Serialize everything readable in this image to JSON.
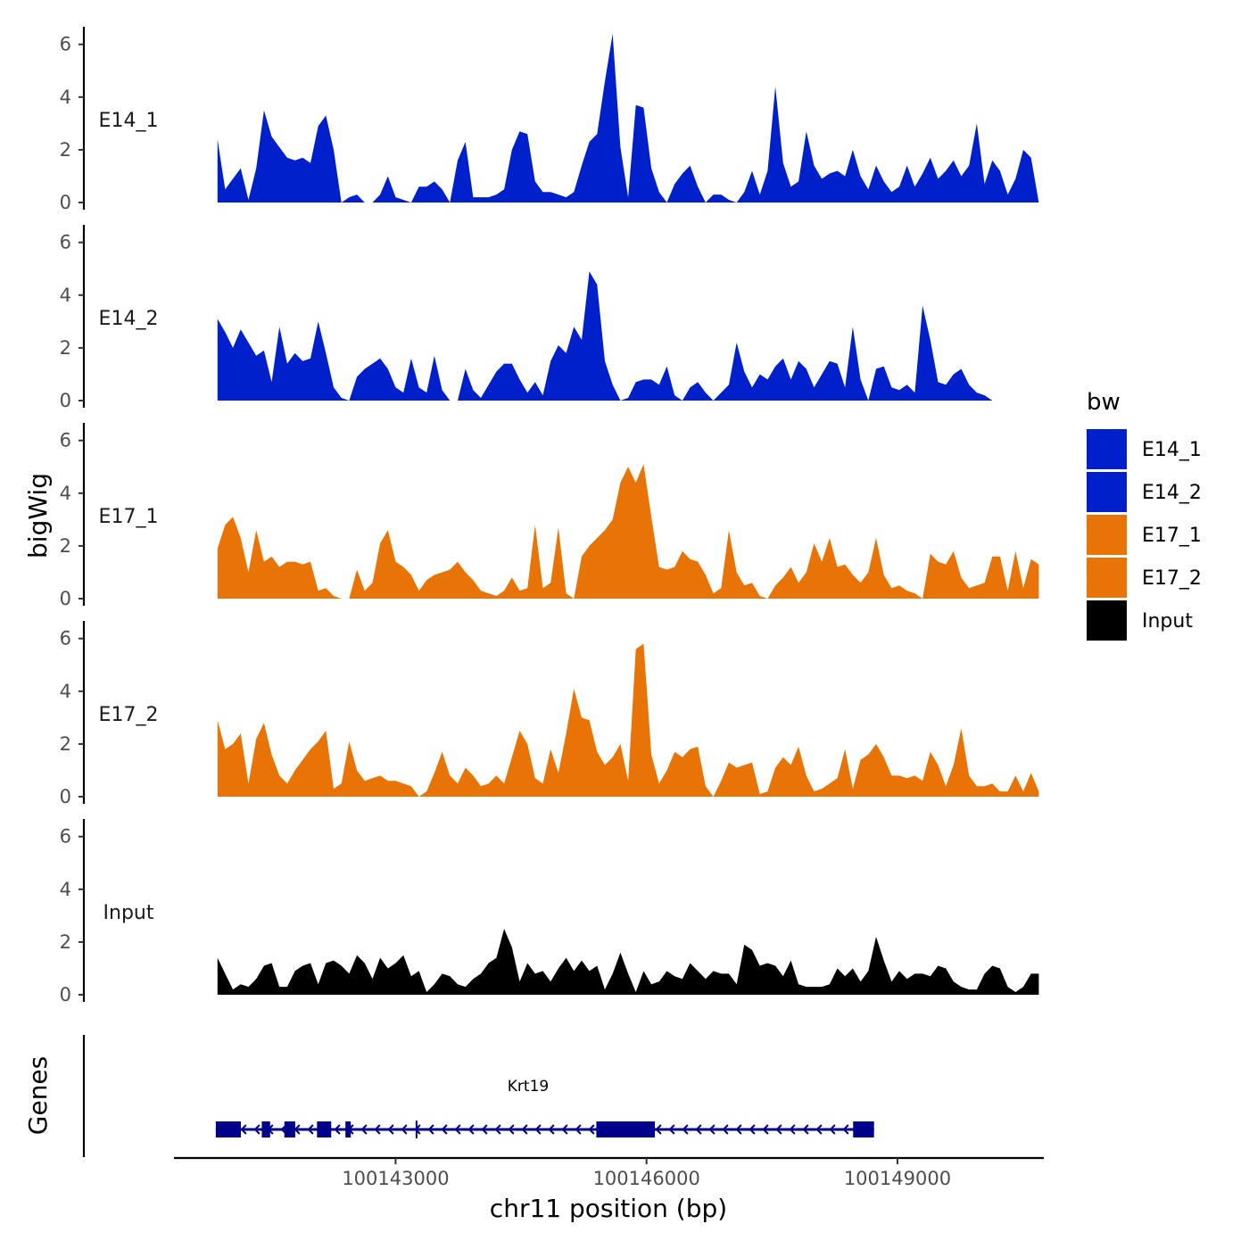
{
  "chart_data": {
    "type": "area",
    "title": "",
    "xlabel": "chr11 position (bp)",
    "ylabel_tracks": "bigWig",
    "ylabel_genes": "Genes",
    "xlim": [
      100140350,
      100150750
    ],
    "ylim": [
      0,
      6.6
    ],
    "yticks": [
      0,
      2,
      4,
      6
    ],
    "ytick_labels": [
      "0",
      "2",
      "4",
      "6"
    ],
    "xticks": [
      100143000,
      100146000,
      100149000
    ],
    "xtick_labels": [
      "100143000",
      "100146000",
      "100149000"
    ],
    "x_start": 100140870,
    "x_end": 100150690,
    "legend": {
      "title": "bw",
      "position": "right",
      "entries": [
        {
          "label": "E14_1",
          "color": "#0020CC"
        },
        {
          "label": "E14_2",
          "color": "#0020CC"
        },
        {
          "label": "E17_1",
          "color": "#E87408"
        },
        {
          "label": "E17_2",
          "color": "#E87408"
        },
        {
          "label": "Input",
          "color": "#000000"
        }
      ]
    },
    "series": [
      {
        "name": "E14_1",
        "color": "#0020CC",
        "values": [
          2.4,
          0.5,
          0.9,
          1.3,
          0.1,
          1.3,
          3.5,
          2.5,
          2.1,
          1.7,
          1.6,
          1.7,
          1.5,
          2.9,
          3.3,
          2.0,
          0.0,
          0.2,
          0.3,
          0.0,
          0.0,
          0.3,
          1.0,
          0.2,
          0.1,
          0.0,
          0.6,
          0.6,
          0.8,
          0.5,
          0.0,
          1.6,
          2.3,
          0.2,
          0.2,
          0.2,
          0.3,
          0.5,
          2.0,
          2.7,
          2.6,
          0.8,
          0.4,
          0.4,
          0.3,
          0.2,
          0.4,
          1.4,
          2.3,
          2.6,
          4.6,
          6.4,
          2.1,
          0.2,
          3.7,
          3.6,
          1.3,
          0.4,
          0.0,
          0.7,
          1.1,
          1.4,
          0.6,
          0.0,
          0.3,
          0.3,
          0.1,
          0.0,
          0.4,
          1.2,
          0.3,
          1.2,
          4.4,
          1.5,
          0.6,
          0.8,
          2.7,
          1.4,
          0.9,
          1.1,
          1.2,
          1.0,
          2.0,
          1.0,
          0.5,
          1.4,
          0.8,
          0.4,
          0.6,
          1.4,
          0.6,
          1.1,
          1.7,
          0.9,
          1.2,
          1.6,
          1.0,
          1.4,
          3.0,
          0.7,
          1.6,
          1.2,
          0.3,
          0.9,
          2.0,
          1.7,
          0.0
        ]
      },
      {
        "name": "E14_2",
        "color": "#0020CC",
        "values": [
          3.1,
          2.6,
          2.0,
          2.7,
          2.2,
          1.7,
          1.9,
          0.7,
          2.8,
          1.4,
          1.8,
          1.5,
          1.6,
          3.0,
          1.8,
          0.5,
          0.1,
          0.0,
          0.9,
          1.2,
          1.4,
          1.6,
          1.2,
          0.5,
          0.3,
          1.6,
          0.5,
          0.3,
          1.7,
          0.4,
          0.0,
          0.0,
          1.2,
          0.4,
          0.1,
          0.6,
          1.1,
          1.4,
          1.4,
          0.8,
          0.3,
          0.7,
          0.2,
          1.5,
          2.1,
          1.8,
          2.8,
          2.3,
          4.9,
          4.4,
          1.5,
          0.6,
          0.0,
          0.1,
          0.7,
          0.8,
          0.8,
          0.6,
          1.3,
          0.2,
          0.0,
          0.5,
          0.7,
          0.3,
          0.0,
          0.3,
          0.6,
          2.2,
          1.1,
          0.5,
          1.0,
          0.8,
          1.3,
          1.6,
          0.8,
          1.5,
          1.2,
          0.5,
          1.0,
          1.5,
          1.4,
          0.5,
          2.8,
          0.8,
          0.0,
          1.2,
          1.3,
          0.5,
          0.4,
          0.6,
          0.3,
          3.6,
          2.3,
          0.7,
          0.6,
          1.0,
          1.2,
          0.6,
          0.3,
          0.2,
          0.0,
          0.0,
          0.0,
          0.0,
          0.0,
          0.0,
          0.0
        ]
      },
      {
        "name": "E17_1",
        "color": "#E87408",
        "values": [
          1.9,
          2.8,
          3.1,
          2.3,
          1.0,
          2.6,
          1.4,
          1.6,
          1.2,
          1.4,
          1.4,
          1.3,
          1.4,
          0.3,
          0.4,
          0.1,
          0.0,
          0.0,
          1.1,
          0.3,
          0.6,
          2.1,
          2.6,
          1.4,
          1.2,
          0.9,
          0.3,
          0.7,
          0.9,
          1.0,
          1.1,
          1.4,
          1.0,
          0.7,
          0.3,
          0.2,
          0.1,
          0.3,
          0.8,
          0.3,
          0.4,
          2.8,
          0.4,
          0.6,
          2.7,
          0.2,
          0.0,
          1.6,
          2.0,
          2.3,
          2.6,
          3.0,
          4.4,
          5.0,
          4.4,
          5.1,
          3.1,
          1.2,
          1.1,
          1.2,
          1.8,
          1.5,
          1.4,
          0.9,
          0.2,
          0.4,
          2.6,
          1.0,
          0.5,
          0.6,
          0.1,
          0.0,
          0.5,
          0.8,
          1.2,
          0.6,
          1.0,
          2.1,
          1.4,
          2.3,
          1.2,
          1.3,
          0.9,
          0.6,
          1.0,
          2.3,
          0.9,
          0.4,
          0.5,
          0.3,
          0.2,
          0.0,
          1.7,
          1.4,
          1.3,
          1.8,
          0.8,
          0.4,
          0.5,
          0.6,
          1.6,
          1.6,
          0.3,
          1.8,
          0.4,
          1.5,
          1.3
        ]
      },
      {
        "name": "E17_2",
        "color": "#E87408",
        "values": [
          2.9,
          1.8,
          2.0,
          2.4,
          0.5,
          2.2,
          2.8,
          1.6,
          0.8,
          0.5,
          1.0,
          1.4,
          1.8,
          2.1,
          2.5,
          0.3,
          0.5,
          2.1,
          1.0,
          0.6,
          0.7,
          0.8,
          0.6,
          0.6,
          0.5,
          0.4,
          0.0,
          0.2,
          0.9,
          1.7,
          0.8,
          0.5,
          1.1,
          0.8,
          0.4,
          0.5,
          0.8,
          0.5,
          1.5,
          2.5,
          2.0,
          0.7,
          0.5,
          1.8,
          0.9,
          2.4,
          4.1,
          3.0,
          2.9,
          1.7,
          1.2,
          1.5,
          2.0,
          0.6,
          5.6,
          5.8,
          1.6,
          0.5,
          1.0,
          1.7,
          1.5,
          1.8,
          1.9,
          0.4,
          0.0,
          0.6,
          1.3,
          1.1,
          1.2,
          1.3,
          0.1,
          0.2,
          1.1,
          1.5,
          1.2,
          1.9,
          0.8,
          0.2,
          0.3,
          0.5,
          0.7,
          1.8,
          0.3,
          1.4,
          1.6,
          2.0,
          1.5,
          0.8,
          0.8,
          0.7,
          0.8,
          0.6,
          1.7,
          1.2,
          0.4,
          1.2,
          2.6,
          0.8,
          0.4,
          0.4,
          0.5,
          0.2,
          0.2,
          0.8,
          0.2,
          0.9,
          0.2
        ]
      },
      {
        "name": "Input",
        "color": "#000000",
        "values": [
          1.4,
          0.8,
          0.2,
          0.4,
          0.3,
          0.6,
          1.1,
          1.2,
          0.3,
          0.3,
          0.9,
          1.1,
          1.2,
          0.4,
          1.2,
          1.3,
          1.1,
          0.8,
          1.5,
          1.2,
          0.6,
          1.4,
          1.0,
          1.2,
          1.5,
          0.7,
          0.9,
          0.1,
          0.4,
          0.8,
          0.7,
          0.4,
          0.3,
          0.6,
          0.8,
          1.2,
          1.4,
          2.5,
          1.8,
          0.5,
          1.2,
          0.8,
          0.9,
          0.5,
          1.0,
          1.4,
          0.9,
          1.3,
          0.9,
          1.1,
          0.2,
          0.8,
          1.6,
          0.8,
          0.1,
          0.9,
          0.4,
          0.5,
          0.9,
          0.7,
          0.6,
          1.2,
          0.9,
          0.6,
          0.9,
          0.8,
          0.8,
          0.4,
          1.9,
          1.7,
          1.1,
          1.2,
          1.1,
          0.7,
          1.3,
          0.4,
          0.3,
          0.3,
          0.3,
          0.4,
          1.0,
          0.7,
          1.0,
          0.5,
          0.9,
          2.2,
          1.3,
          0.5,
          0.9,
          0.6,
          0.8,
          0.8,
          0.7,
          1.1,
          1.0,
          0.5,
          0.3,
          0.2,
          0.2,
          0.8,
          1.1,
          1.0,
          0.3,
          0.1,
          0.3,
          0.8,
          0.8
        ]
      }
    ],
    "gene_track": {
      "label": "Krt19",
      "color": "#00008B",
      "strand": "-",
      "line_start": 100140850,
      "line_end": 100148720,
      "exons": [
        [
          100140850,
          100141150
        ],
        [
          100141400,
          100141500
        ],
        [
          100141670,
          100141800
        ],
        [
          100142060,
          100142230
        ],
        [
          100142400,
          100142460
        ],
        [
          100145400,
          100146100
        ],
        [
          100148470,
          100148720
        ]
      ]
    }
  }
}
